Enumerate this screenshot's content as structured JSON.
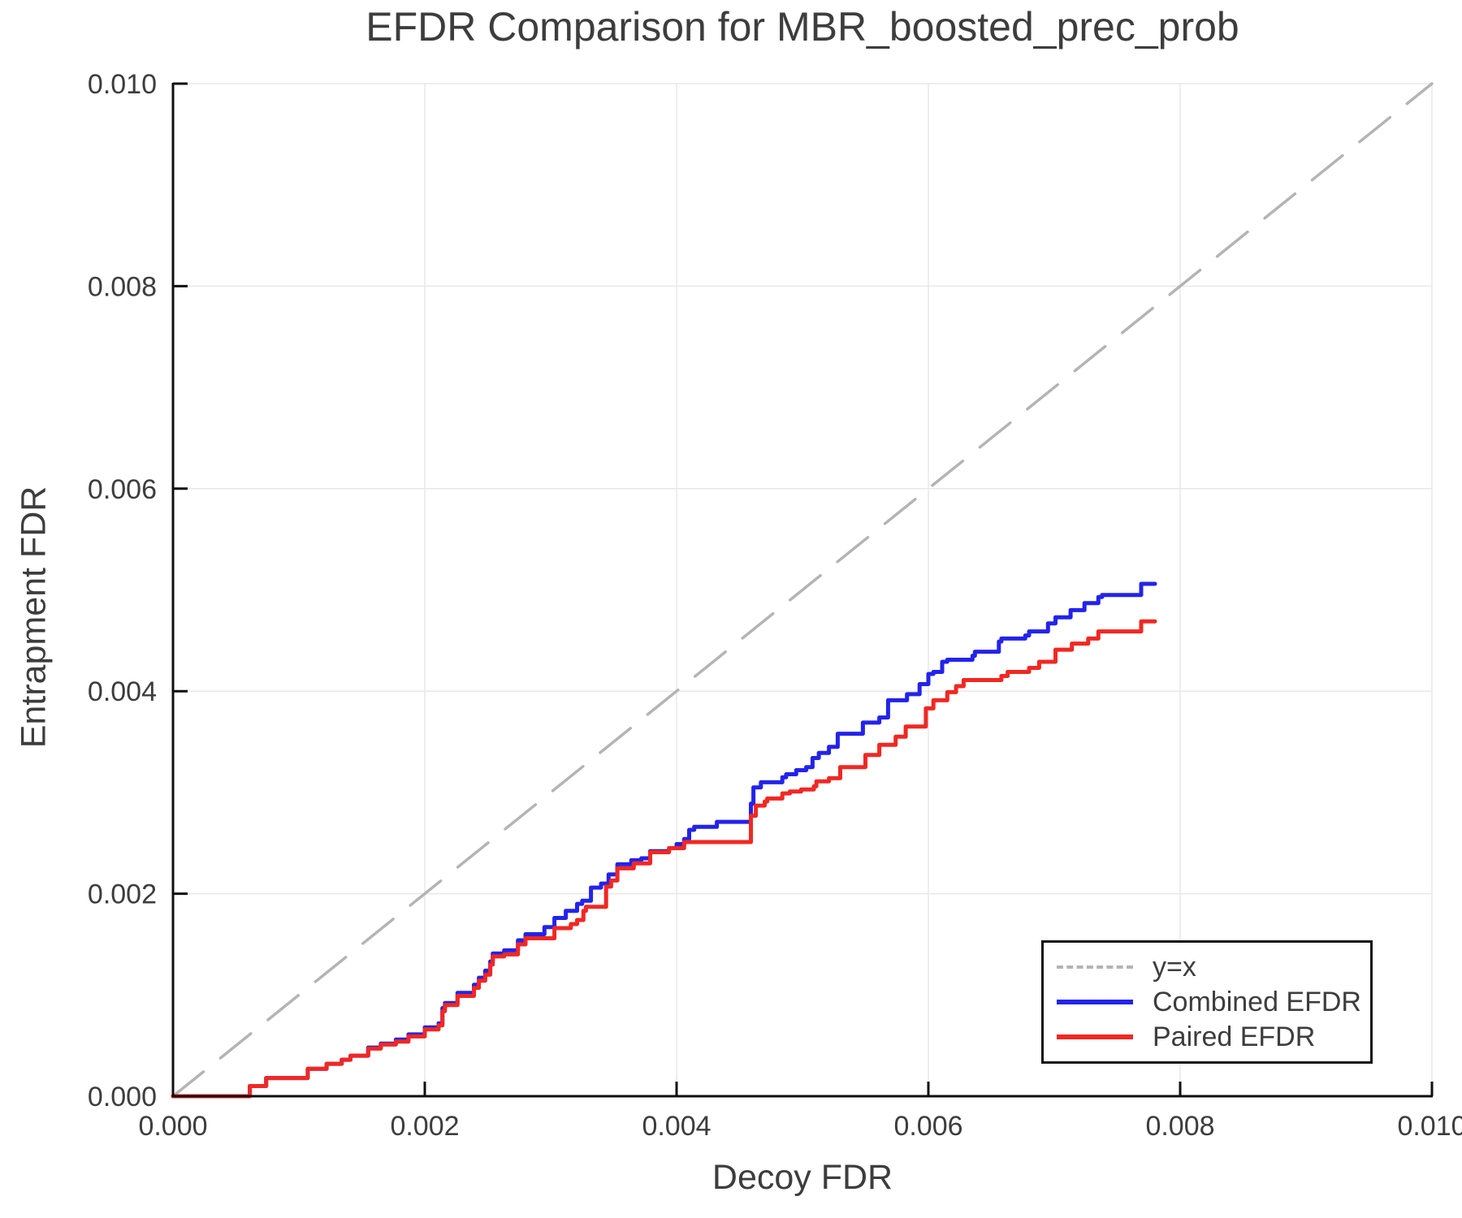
{
  "title": "EFDR Comparison for MBR_boosted_prec_prob",
  "chart_data": {
    "type": "line",
    "title": "EFDR Comparison for MBR_boosted_prec_prob",
    "xlabel": "Decoy FDR",
    "ylabel": "Entrapment FDR",
    "xlim": [
      0,
      0.01
    ],
    "ylim": [
      0,
      0.01
    ],
    "grid": true,
    "legend_position": "lower right",
    "x_ticks": {
      "values": [
        0,
        0.002,
        0.004,
        0.006,
        0.008,
        0.01
      ],
      "labels": [
        "0.000",
        "0.002",
        "0.004",
        "0.006",
        "0.008",
        "0.010"
      ]
    },
    "y_ticks": {
      "values": [
        0,
        0.002,
        0.004,
        0.006,
        0.008,
        0.01
      ],
      "labels": [
        "0.000",
        "0.002",
        "0.004",
        "0.006",
        "0.008",
        "0.010"
      ]
    },
    "style": {
      "grid_color": "#e9e9e9",
      "spine_color": "#0f0f0f",
      "tick_color": "#0f0f0f",
      "text_color": "#3d3d3d",
      "background": "#ffffff"
    },
    "series": [
      {
        "name": "y=x",
        "render": "line",
        "dash": "dashed",
        "color": "#b4b4b4",
        "points": [
          [
            0,
            0
          ],
          [
            0.01,
            0.01
          ]
        ]
      },
      {
        "name": "Combined EFDR",
        "render": "step",
        "dash": "solid",
        "color": "#2323eb",
        "points": [
          [
            0,
            0
          ],
          [
            0.00061,
            0.0001
          ],
          [
            0.00074,
            0.00018
          ],
          [
            0.00107,
            0.00027
          ],
          [
            0.00122,
            0.00032
          ],
          [
            0.00134,
            0.00036
          ],
          [
            0.00141,
            0.0004
          ],
          [
            0.00155,
            0.00048
          ],
          [
            0.00165,
            0.00052
          ],
          [
            0.00177,
            0.00056
          ],
          [
            0.00187,
            0.00061
          ],
          [
            0.002,
            0.00068
          ],
          [
            0.00211,
            0.00072
          ],
          [
            0.00214,
            0.00087
          ],
          [
            0.00216,
            0.00092
          ],
          [
            0.00226,
            0.00102
          ],
          [
            0.00239,
            0.0011
          ],
          [
            0.00243,
            0.00117
          ],
          [
            0.00248,
            0.00124
          ],
          [
            0.00252,
            0.00133
          ],
          [
            0.00254,
            0.00141
          ],
          [
            0.00263,
            0.00144
          ],
          [
            0.00274,
            0.00154
          ],
          [
            0.0028,
            0.0016
          ],
          [
            0.00295,
            0.00167
          ],
          [
            0.00303,
            0.00176
          ],
          [
            0.00312,
            0.00183
          ],
          [
            0.00321,
            0.0019
          ],
          [
            0.00325,
            0.00193
          ],
          [
            0.00332,
            0.00206
          ],
          [
            0.0034,
            0.0021
          ],
          [
            0.00346,
            0.00219
          ],
          [
            0.00353,
            0.00229
          ],
          [
            0.00364,
            0.00233
          ],
          [
            0.00372,
            0.00235
          ],
          [
            0.00379,
            0.00242
          ],
          [
            0.00394,
            0.00245
          ],
          [
            0.004,
            0.00249
          ],
          [
            0.00406,
            0.00254
          ],
          [
            0.0041,
            0.00263
          ],
          [
            0.00414,
            0.00266
          ],
          [
            0.00432,
            0.00271
          ],
          [
            0.00459,
            0.00289
          ],
          [
            0.00461,
            0.00305
          ],
          [
            0.00467,
            0.0031
          ],
          [
            0.00484,
            0.00315
          ],
          [
            0.00487,
            0.00318
          ],
          [
            0.00495,
            0.00322
          ],
          [
            0.00503,
            0.00325
          ],
          [
            0.00508,
            0.00334
          ],
          [
            0.00513,
            0.00339
          ],
          [
            0.00521,
            0.00345
          ],
          [
            0.00528,
            0.00358
          ],
          [
            0.00548,
            0.00369
          ],
          [
            0.00561,
            0.00374
          ],
          [
            0.00568,
            0.00391
          ],
          [
            0.00583,
            0.00397
          ],
          [
            0.00593,
            0.00407
          ],
          [
            0.006,
            0.00417
          ],
          [
            0.00604,
            0.00419
          ],
          [
            0.00611,
            0.00429
          ],
          [
            0.00615,
            0.00431
          ],
          [
            0.00635,
            0.00435
          ],
          [
            0.00637,
            0.00439
          ],
          [
            0.00656,
            0.00449
          ],
          [
            0.00658,
            0.00452
          ],
          [
            0.00677,
            0.00455
          ],
          [
            0.0068,
            0.00459
          ],
          [
            0.00695,
            0.00467
          ],
          [
            0.00701,
            0.00473
          ],
          [
            0.00713,
            0.0048
          ],
          [
            0.00724,
            0.00487
          ],
          [
            0.00735,
            0.00493
          ],
          [
            0.00738,
            0.00495
          ],
          [
            0.00769,
            0.00506
          ],
          [
            0.0078,
            0.00506
          ]
        ]
      },
      {
        "name": "Paired EFDR",
        "render": "step",
        "dash": "solid",
        "color": "#f02823",
        "points": [
          [
            0,
            0
          ],
          [
            0.00061,
            0.0001
          ],
          [
            0.00074,
            0.00018
          ],
          [
            0.00107,
            0.00027
          ],
          [
            0.00122,
            0.00032
          ],
          [
            0.00134,
            0.00036
          ],
          [
            0.00141,
            0.0004
          ],
          [
            0.00155,
            0.00047
          ],
          [
            0.00165,
            0.00051
          ],
          [
            0.00177,
            0.00054
          ],
          [
            0.00187,
            0.00059
          ],
          [
            0.002,
            0.00066
          ],
          [
            0.00211,
            0.0007
          ],
          [
            0.00214,
            0.00084
          ],
          [
            0.00216,
            0.0009
          ],
          [
            0.00226,
            0.00099
          ],
          [
            0.00239,
            0.00107
          ],
          [
            0.00243,
            0.00114
          ],
          [
            0.00248,
            0.0012
          ],
          [
            0.00252,
            0.0013
          ],
          [
            0.00254,
            0.00138
          ],
          [
            0.00263,
            0.0014
          ],
          [
            0.00274,
            0.0015
          ],
          [
            0.0028,
            0.00156
          ],
          [
            0.00303,
            0.00166
          ],
          [
            0.00316,
            0.0017
          ],
          [
            0.00321,
            0.00174
          ],
          [
            0.00326,
            0.00183
          ],
          [
            0.00328,
            0.00187
          ],
          [
            0.00344,
            0.00207
          ],
          [
            0.00348,
            0.00213
          ],
          [
            0.00353,
            0.00225
          ],
          [
            0.00366,
            0.0023
          ],
          [
            0.00379,
            0.00241
          ],
          [
            0.00394,
            0.00245
          ],
          [
            0.00406,
            0.00251
          ],
          [
            0.00459,
            0.00277
          ],
          [
            0.00463,
            0.00287
          ],
          [
            0.0047,
            0.00291
          ],
          [
            0.00472,
            0.00294
          ],
          [
            0.00484,
            0.00299
          ],
          [
            0.0049,
            0.00301
          ],
          [
            0.00499,
            0.00303
          ],
          [
            0.00509,
            0.00306
          ],
          [
            0.00511,
            0.00311
          ],
          [
            0.00521,
            0.00314
          ],
          [
            0.0053,
            0.00325
          ],
          [
            0.0055,
            0.00337
          ],
          [
            0.00561,
            0.00347
          ],
          [
            0.00574,
            0.00355
          ],
          [
            0.00582,
            0.00365
          ],
          [
            0.00598,
            0.00383
          ],
          [
            0.00604,
            0.00391
          ],
          [
            0.00615,
            0.00399
          ],
          [
            0.00622,
            0.00405
          ],
          [
            0.00628,
            0.00411
          ],
          [
            0.00658,
            0.00415
          ],
          [
            0.00663,
            0.00419
          ],
          [
            0.0068,
            0.00423
          ],
          [
            0.00688,
            0.00429
          ],
          [
            0.00701,
            0.00441
          ],
          [
            0.00714,
            0.00447
          ],
          [
            0.00727,
            0.00452
          ],
          [
            0.00735,
            0.00459
          ],
          [
            0.00769,
            0.00469
          ],
          [
            0.0078,
            0.00469
          ]
        ]
      }
    ]
  }
}
